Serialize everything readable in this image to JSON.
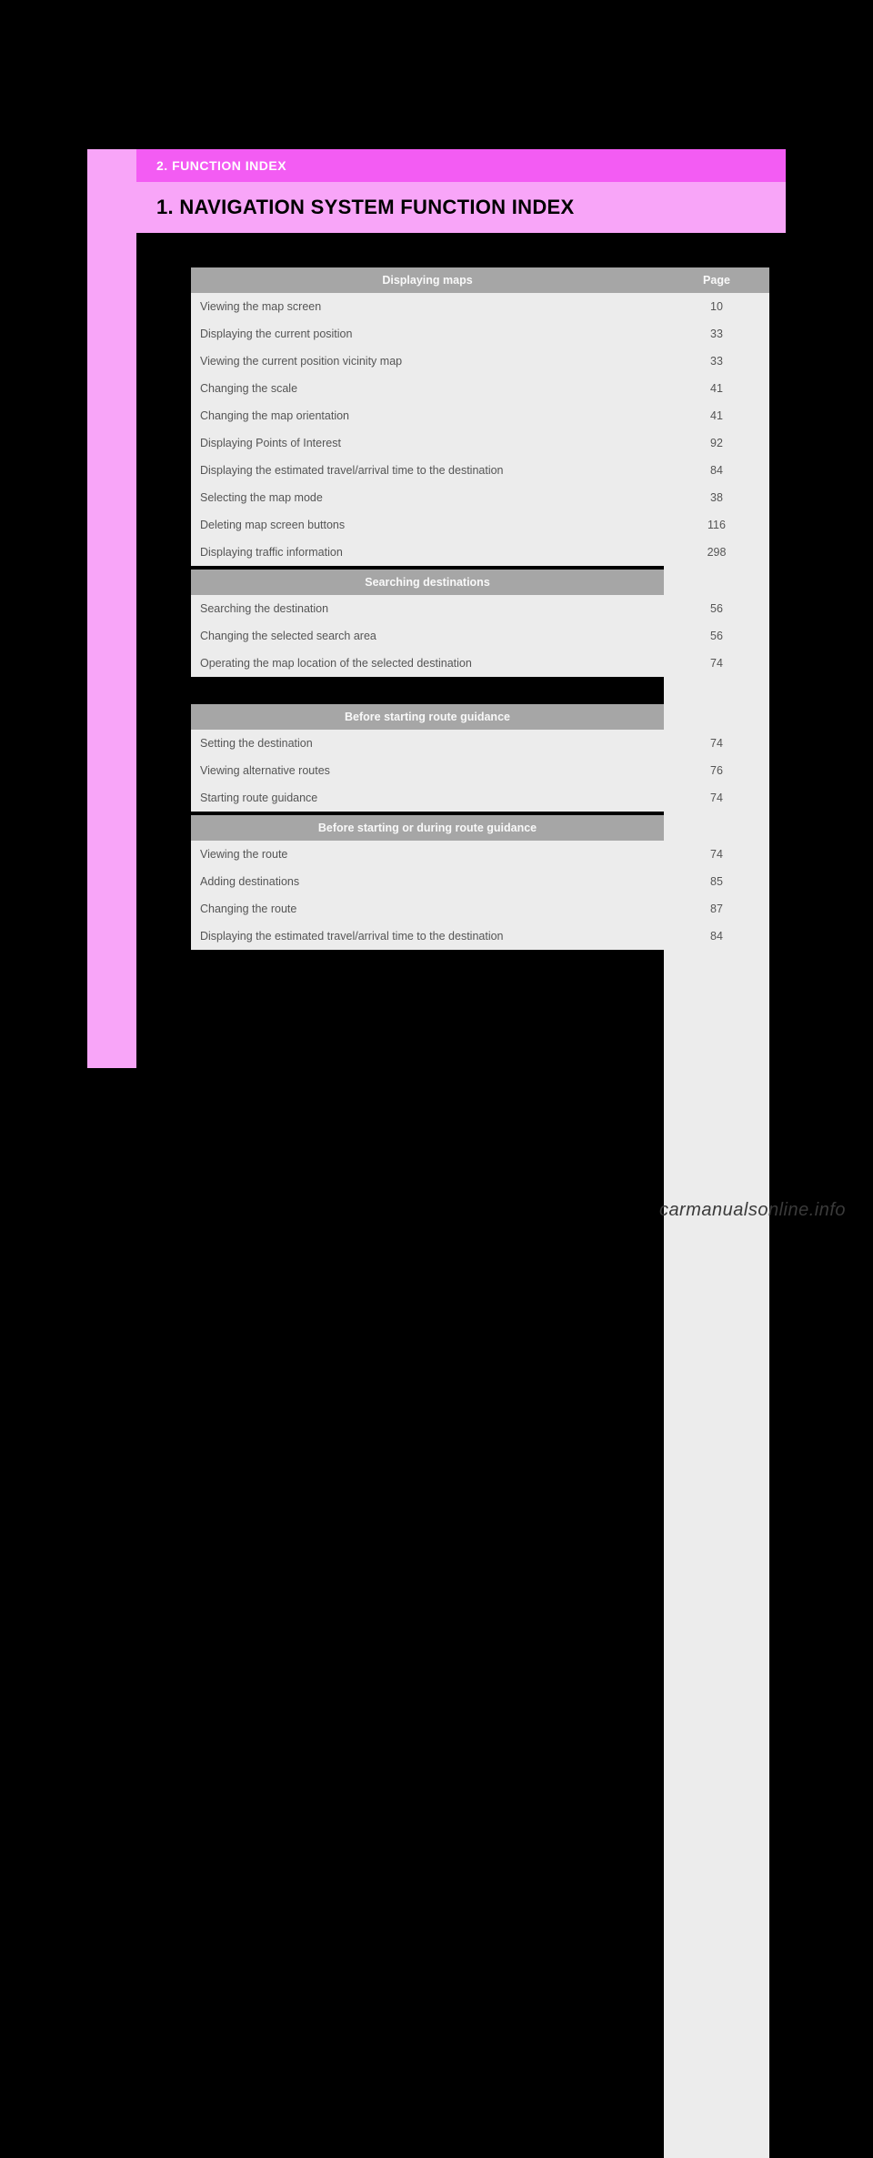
{
  "colors": {
    "page_bg": "#000000",
    "sidebar": "#f8a5f8",
    "header_top_bg": "#f35cf3",
    "header_bottom_bg": "#f8a5f8",
    "table_header_bg": "#a6a6a6",
    "table_row_bg": "#ececec",
    "table_header_text": "#f9f9f9",
    "table_text": "#555555"
  },
  "breadcrumb": "2. FUNCTION INDEX",
  "title": "1. NAVIGATION SYSTEM FUNCTION INDEX",
  "page_col_label": "Page",
  "sections": [
    {
      "header": "Displaying maps",
      "rows": [
        {
          "label": "Viewing the map screen",
          "page": "10"
        },
        {
          "label": "Displaying the current position",
          "page": "33"
        },
        {
          "label": "Viewing the current position vicinity map",
          "page": "33"
        },
        {
          "label": "Changing the scale",
          "page": "41"
        },
        {
          "label": "Changing the map orientation",
          "page": "41"
        },
        {
          "label": "Displaying Points of Interest",
          "page": "92"
        },
        {
          "label": "Displaying the estimated travel/arrival time to the destination",
          "page": "84"
        },
        {
          "label": "Selecting the map mode",
          "page": "38"
        },
        {
          "label": "Deleting map screen buttons",
          "page": "116"
        },
        {
          "label": "Displaying traffic information",
          "page": "298"
        }
      ]
    },
    {
      "header": "Searching destinations",
      "rows": [
        {
          "label": "Searching the destination",
          "page": "56"
        },
        {
          "label": "Changing the selected search area",
          "page": "56"
        },
        {
          "label": "Operating the map location of the selected destination",
          "page": "74"
        }
      ]
    },
    {
      "header": "Before starting route guidance",
      "rows": [
        {
          "label": "Setting the destination",
          "page": "74"
        },
        {
          "label": "Viewing alternative routes",
          "page": "76"
        },
        {
          "label": "Starting route guidance",
          "page": "74"
        }
      ]
    },
    {
      "header": "Before starting or during route guidance",
      "rows": [
        {
          "label": "Viewing the route",
          "page": "74"
        },
        {
          "label": "Adding destinations",
          "page": "85"
        },
        {
          "label": "Changing the route",
          "page": "87"
        },
        {
          "label": "Displaying the estimated travel/arrival time to the destination",
          "page": "84"
        }
      ]
    }
  ],
  "gap_after_section_index": 1,
  "watermark": "carmanualsonline.info"
}
